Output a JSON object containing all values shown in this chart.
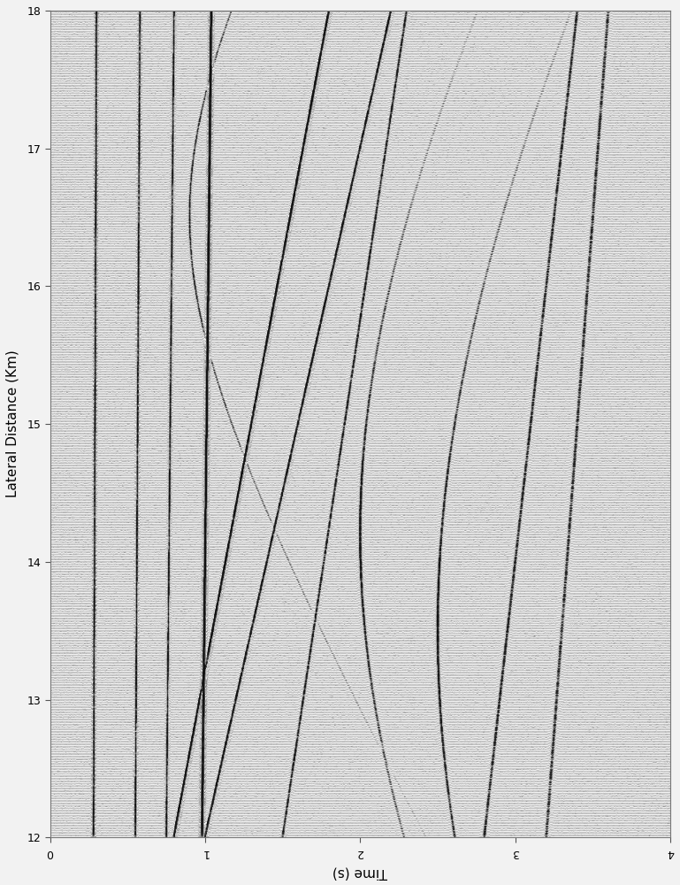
{
  "xlabel": "Time (s)",
  "ylabel": "Lateral Distance (Km)",
  "xlim": [
    0,
    4
  ],
  "ylim": [
    12,
    18
  ],
  "xticks": [
    0,
    1,
    2,
    3,
    4
  ],
  "yticks": [
    12,
    13,
    14,
    15,
    16,
    17,
    18
  ],
  "figsize": [
    7.69,
    10.0
  ],
  "dpi": 100,
  "bg_color": "#f2f2f2",
  "n_traces": 600,
  "n_samples": 800,
  "time_max": 4.0,
  "dist_min": 12,
  "dist_max": 18,
  "seed": 7,
  "trace_scale": 0.006,
  "wiggle_color": "#111111",
  "fill_color": "#111111"
}
